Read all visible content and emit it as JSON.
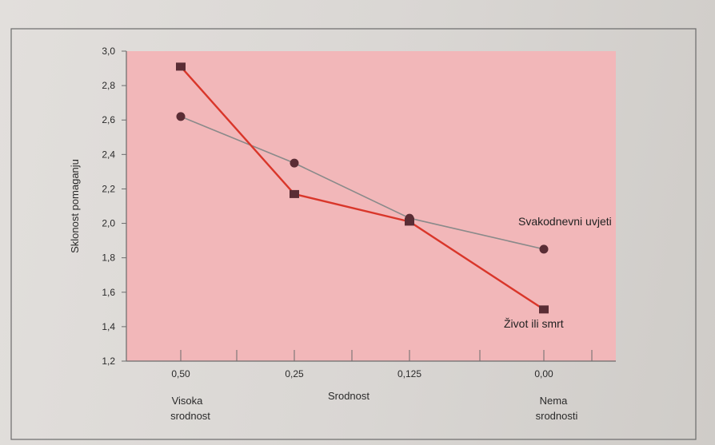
{
  "chart_data": {
    "type": "line",
    "categories": [
      "0,50",
      "0,25",
      "0,125",
      "0,00"
    ],
    "category_sublabels": [
      {
        "line1": "Visoka",
        "line2": "srodnost"
      },
      {
        "line1": "",
        "line2": ""
      },
      {
        "line1": "",
        "line2": ""
      },
      {
        "line1": "Nema",
        "line2": "srodnosti"
      }
    ],
    "xlabel": "Srodnost",
    "ylabel": "Sklonost pomaganju",
    "ylim": [
      1.2,
      3.0
    ],
    "yticks": [
      "1,2",
      "1,4",
      "1,6",
      "1,8",
      "2,0",
      "2,2",
      "2,4",
      "2,6",
      "2,8",
      "3,0"
    ],
    "grid": false,
    "series": [
      {
        "name": "Svakodnevni uvjeti",
        "marker": "circle",
        "color": "#8a8a8a",
        "marker_color": "#5a2d35",
        "values": [
          2.62,
          2.35,
          2.03,
          1.85
        ]
      },
      {
        "name": "Život ili smrt",
        "marker": "square",
        "color": "#d9362a",
        "marker_color": "#5a2d35",
        "values": [
          2.91,
          2.17,
          2.01,
          1.5
        ]
      }
    ],
    "colors": {
      "plot_background": "#f2b7b9",
      "frame": "#6b6b6b"
    }
  }
}
